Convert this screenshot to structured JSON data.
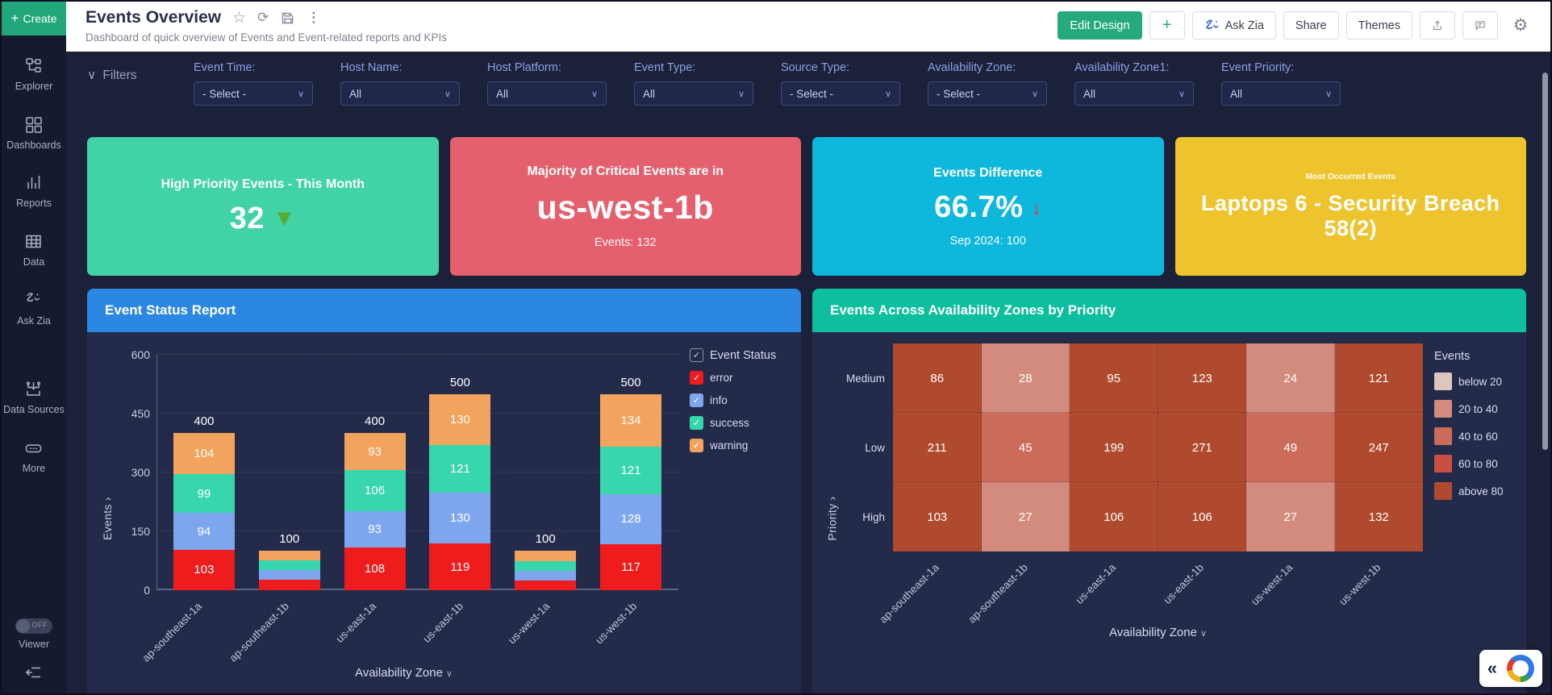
{
  "glyphs": {
    "chevron_down": "∨",
    "star": "☆",
    "refresh": "⟳",
    "kebab": "⋮",
    "gear": "⚙",
    "plus": "+",
    "collapse": "«"
  },
  "sidebar": {
    "create_label": "Create",
    "items": [
      {
        "label": "Explorer"
      },
      {
        "label": "Dashboards"
      },
      {
        "label": "Reports"
      },
      {
        "label": "Data"
      },
      {
        "label": "Ask Zia"
      },
      {
        "label": "Data Sources"
      },
      {
        "label": "More"
      }
    ],
    "viewer_toggle": {
      "label": "Viewer",
      "state": "OFF"
    }
  },
  "header": {
    "title": "Events Overview",
    "subtitle": "Dashboard of quick overview of Events and Event-related reports and KPIs",
    "buttons": {
      "edit_design": "Edit Design",
      "ask_zia": "Ask Zia",
      "share": "Share",
      "themes": "Themes"
    }
  },
  "filters": {
    "toggle_label": "Filters",
    "items": [
      {
        "label": "Event Time:",
        "value": "- Select -"
      },
      {
        "label": "Host Name:",
        "value": "All"
      },
      {
        "label": "Host Platform:",
        "value": "All"
      },
      {
        "label": "Event Type:",
        "value": "All"
      },
      {
        "label": "Source Type:",
        "value": "- Select -"
      },
      {
        "label": "Availability Zone:",
        "value": "- Select -"
      },
      {
        "label": "Availability Zone1:",
        "value": "All"
      },
      {
        "label": "Event Priority:",
        "value": "All"
      }
    ]
  },
  "kpis": [
    {
      "title": "High Priority Events - This Month",
      "value": "32",
      "trend": "down",
      "trend_glyph": "▼",
      "color": "#41d3a5"
    },
    {
      "title": "Majority of Critical Events are in",
      "value": "us-west-1b",
      "footer": "Events: 132",
      "color": "#e4606e"
    },
    {
      "title": "Events Difference",
      "value": "66.7%",
      "trend": "down",
      "trend_glyph": "↓",
      "footer": "Sep 2024: 100",
      "color": "#0eb8dc"
    },
    {
      "title": "Most Occurred Events",
      "value": "Laptops 6 - Security Breach 58(2)",
      "color": "#eec42e"
    }
  ],
  "chart_data": [
    {
      "type": "bar",
      "stacked": true,
      "title": "Event Status Report",
      "categories": [
        "ap-southeast-1a",
        "ap-southeast-1b",
        "us-east-1a",
        "us-east-1b",
        "us-west-1a",
        "us-west-1b"
      ],
      "series": [
        {
          "name": "error",
          "color": "#ee1c1c",
          "values": [
            103,
            26,
            108,
            119,
            25,
            117
          ]
        },
        {
          "name": "info",
          "color": "#7ea6ef",
          "values": [
            94,
            25,
            93,
            130,
            25,
            128
          ]
        },
        {
          "name": "success",
          "color": "#38d6ad",
          "values": [
            99,
            25,
            106,
            121,
            25,
            121
          ]
        },
        {
          "name": "warning",
          "color": "#f2a35e",
          "values": [
            104,
            24,
            93,
            130,
            25,
            134
          ]
        }
      ],
      "totals": [
        400,
        100,
        400,
        500,
        100,
        500
      ],
      "xlabel": "Availability Zone",
      "ylabel": "Events",
      "yticks": [
        0,
        150,
        300,
        450,
        600
      ],
      "ylim": [
        0,
        600
      ],
      "grid": "dashed-horizontal",
      "legend_title": "Event Status",
      "legend_position": "right"
    },
    {
      "type": "heatmap",
      "title": "Events Across Availability Zones by Priority",
      "rows": [
        "Medium",
        "Low",
        "High"
      ],
      "columns": [
        "ap-southeast-1a",
        "ap-southeast-1b",
        "us-east-1a",
        "us-east-1b",
        "us-west-1a",
        "us-west-1b"
      ],
      "values": [
        [
          86,
          28,
          95,
          123,
          24,
          121
        ],
        [
          211,
          45,
          199,
          271,
          49,
          247
        ],
        [
          103,
          27,
          106,
          106,
          27,
          132
        ]
      ],
      "xlabel": "Availability Zone",
      "ylabel": "Priority",
      "legend_title": "Events",
      "legend_position": "right",
      "legend_bins": [
        {
          "label": "below 20",
          "max": 20,
          "color": "#dcc6bd",
          "pattern": "dotted"
        },
        {
          "label": "20 to 40",
          "max": 40,
          "color": "#d28b7d"
        },
        {
          "label": "40 to 60",
          "max": 60,
          "color": "#cb6c5a"
        },
        {
          "label": "60 to 80",
          "max": 80,
          "color": "#c94f42"
        },
        {
          "label": "above 80",
          "max": null,
          "color": "#b04a2e"
        }
      ]
    }
  ]
}
